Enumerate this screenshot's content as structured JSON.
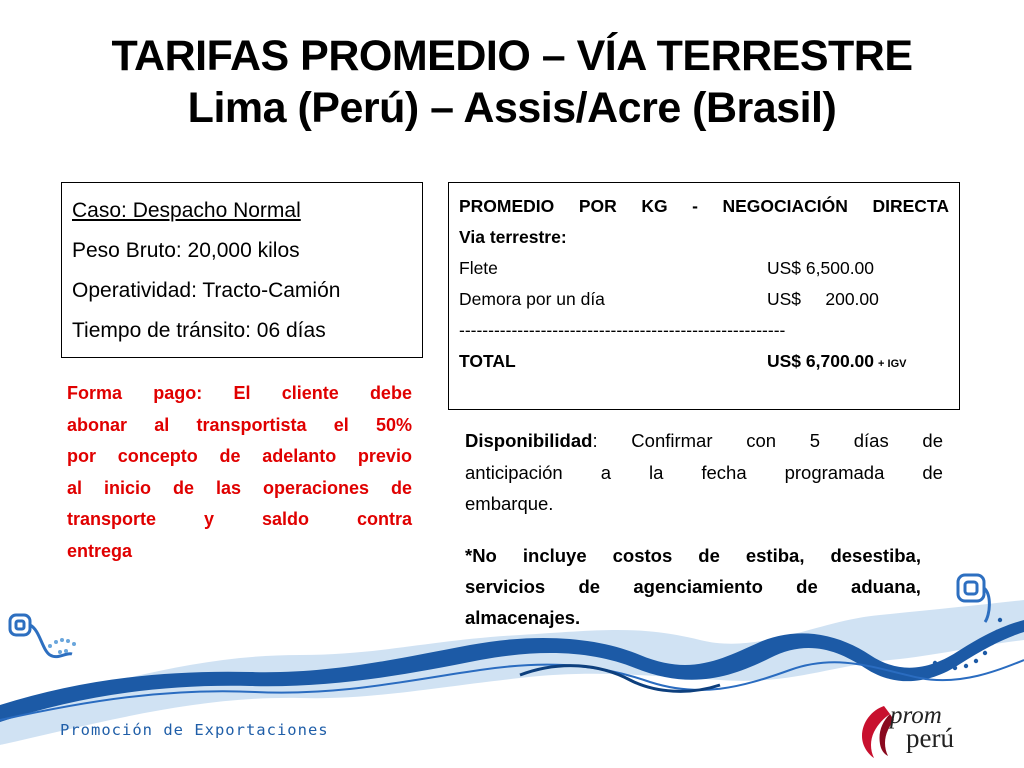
{
  "title": {
    "line1": "TARIFAS PROMEDIO – VÍA TERRESTRE",
    "line2": "Lima (Perú) – Assis/Acre (Brasil)"
  },
  "case_box": {
    "case": "Caso: Despacho Normal",
    "weight": "Peso Bruto: 20,000 kilos",
    "operation": "Operatividad: Tracto-Camión",
    "transit": "Tiempo de tránsito: 06 días"
  },
  "price_box": {
    "heading_words": [
      "PROMEDIO",
      "POR",
      "KG",
      "-",
      "NEGOCIACIÓN",
      "DIRECTA"
    ],
    "heading_line2": "Via terrestre:",
    "rows": [
      {
        "label": "Flete",
        "value": "US$ 6,500.00"
      },
      {
        "label": "Demora por un día",
        "value": "US$     200.00"
      }
    ],
    "separator": "--------------------------------------------------------",
    "total_label": "TOTAL",
    "total_value": "US$ 6,700.00",
    "total_tax": "+ IGV"
  },
  "payment_terms": {
    "lines": [
      [
        "Forma",
        "pago:",
        "El",
        "cliente",
        "debe"
      ],
      [
        "abonar",
        "al",
        "transportista",
        "el",
        "50%"
      ],
      [
        "por",
        "concepto",
        "de",
        "adelanto",
        "previo"
      ],
      [
        "al",
        "inicio",
        "de",
        "las",
        "operaciones",
        "de"
      ],
      [
        "transporte",
        "y",
        "saldo",
        "contra"
      ],
      [
        "entrega"
      ]
    ],
    "color": "#e00000"
  },
  "availability": {
    "label": "Disponibilidad",
    "line1_rest": [
      "Confirmar",
      "con",
      "5",
      "días",
      "de"
    ],
    "line2": [
      "anticipación",
      "a",
      "la",
      "fecha",
      "programada",
      "de"
    ],
    "line3": "embarque."
  },
  "note": {
    "lines": [
      [
        "*No",
        "incluye",
        "costos",
        "de",
        "estiba,",
        "desestiba,"
      ],
      [
        "servicios",
        "de",
        "agenciamiento",
        "de",
        "aduana,"
      ],
      [
        "almacenajes."
      ]
    ]
  },
  "footer": {
    "text": "Promoción de Exportaciones",
    "logo_line1": "prom",
    "logo_line2": "perú",
    "accent_color": "#1f5ea8"
  }
}
